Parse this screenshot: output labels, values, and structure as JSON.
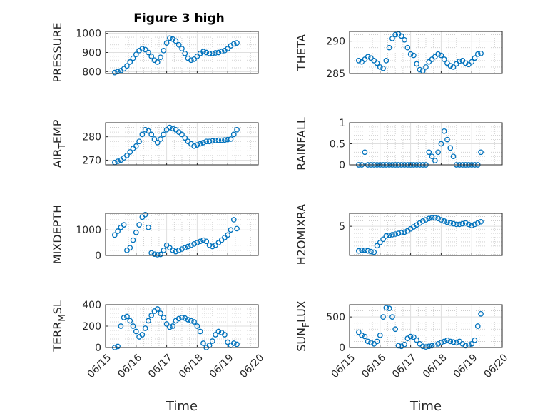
{
  "figure": {
    "title": "Figure 3 high"
  },
  "chart_data": [
    {
      "type": "scatter",
      "ylabel": "PRESSURE",
      "yticks": [
        "800",
        "900",
        "1000"
      ],
      "ylim": [
        790,
        1010
      ],
      "xticks": [],
      "xlabel": "",
      "x": [
        15.3,
        15.4,
        15.5,
        15.6,
        15.7,
        15.8,
        15.9,
        16.0,
        16.1,
        16.2,
        16.3,
        16.4,
        16.5,
        16.6,
        16.7,
        16.8,
        16.9,
        17.0,
        17.1,
        17.2,
        17.3,
        17.4,
        17.5,
        17.6,
        17.7,
        17.8,
        17.9,
        18.0,
        18.1,
        18.2,
        18.3,
        18.4,
        18.5,
        18.6,
        18.7,
        18.8,
        18.9,
        19.0,
        19.1,
        19.2,
        19.3
      ],
      "y": [
        795,
        800,
        805,
        815,
        830,
        850,
        870,
        890,
        910,
        920,
        915,
        900,
        880,
        860,
        850,
        875,
        910,
        950,
        975,
        970,
        960,
        940,
        920,
        895,
        870,
        860,
        865,
        880,
        895,
        905,
        900,
        895,
        895,
        898,
        900,
        905,
        910,
        920,
        935,
        945,
        950
      ]
    },
    {
      "type": "scatter",
      "ylabel": "THETA",
      "yticks": [
        "285",
        "290"
      ],
      "ylim": [
        285,
        291.5
      ],
      "xticks": [],
      "xlabel": "",
      "x": [
        15.3,
        15.4,
        15.5,
        15.6,
        15.7,
        15.8,
        15.9,
        16.0,
        16.1,
        16.2,
        16.3,
        16.4,
        16.5,
        16.6,
        16.7,
        16.8,
        16.9,
        17.0,
        17.1,
        17.2,
        17.3,
        17.4,
        17.5,
        17.6,
        17.7,
        17.8,
        17.9,
        18.0,
        18.1,
        18.2,
        18.3,
        18.4,
        18.5,
        18.6,
        18.7,
        18.8,
        18.9,
        19.0,
        19.1,
        19.2,
        19.3
      ],
      "y": [
        287,
        286.8,
        287.2,
        287.6,
        287.4,
        287,
        286.6,
        286,
        285.8,
        287,
        289,
        290.4,
        291,
        291.1,
        290.8,
        290.2,
        289,
        288,
        287.8,
        286.5,
        285.6,
        285.4,
        286,
        286.8,
        287.2,
        287.6,
        288,
        287.8,
        287.2,
        286.6,
        286.2,
        286,
        286.5,
        286.9,
        287,
        286.6,
        286.4,
        286.8,
        287.4,
        288,
        288.1
      ]
    },
    {
      "type": "scatter",
      "ylabel": "AIR",
      "ylabel_sub": "T",
      "ylabel_rest": "EMP",
      "yticks": [
        "270",
        "280"
      ],
      "ylim": [
        268,
        286
      ],
      "xticks": [],
      "xlabel": "",
      "x": [
        15.3,
        15.4,
        15.5,
        15.6,
        15.7,
        15.8,
        15.9,
        16.0,
        16.1,
        16.2,
        16.3,
        16.4,
        16.5,
        16.6,
        16.7,
        16.8,
        16.9,
        17.0,
        17.1,
        17.2,
        17.3,
        17.4,
        17.5,
        17.6,
        17.7,
        17.8,
        17.9,
        18.0,
        18.1,
        18.2,
        18.3,
        18.4,
        18.5,
        18.6,
        18.7,
        18.8,
        18.9,
        19.0,
        19.1,
        19.2,
        19.3
      ],
      "y": [
        269,
        269.5,
        270,
        271,
        272,
        273.5,
        275,
        276,
        278,
        281,
        283,
        282.5,
        281,
        279,
        277.5,
        279,
        281,
        283,
        284,
        283.5,
        283,
        282,
        281,
        279.5,
        278,
        277,
        276,
        276.5,
        277,
        277.5,
        278,
        278,
        278.2,
        278.4,
        278.5,
        278.5,
        278.6,
        278.8,
        279,
        281,
        283
      ]
    },
    {
      "type": "scatter",
      "ylabel": "RAINFALL",
      "yticks": [
        "0",
        "0.5",
        "1"
      ],
      "ylim": [
        0,
        1
      ],
      "xticks": [],
      "xlabel": "",
      "x": [
        15.3,
        15.4,
        15.5,
        15.6,
        15.7,
        15.8,
        15.9,
        16.0,
        16.1,
        16.2,
        16.3,
        16.4,
        16.5,
        16.6,
        16.7,
        16.8,
        16.9,
        17.0,
        17.1,
        17.2,
        17.3,
        17.4,
        17.5,
        17.6,
        17.7,
        17.8,
        17.9,
        18.0,
        18.1,
        18.2,
        18.3,
        18.4,
        18.5,
        18.6,
        18.7,
        18.8,
        18.9,
        19.0,
        19.1,
        19.2,
        19.3
      ],
      "y": [
        0,
        0,
        0.3,
        0,
        0,
        0,
        0,
        0,
        0,
        0,
        0,
        0,
        0,
        0,
        0,
        0,
        0,
        0,
        0,
        0,
        0,
        0,
        0,
        0.3,
        0.2,
        0.1,
        0.3,
        0.5,
        0.8,
        0.6,
        0.4,
        0.2,
        0,
        0,
        0,
        0,
        0,
        0,
        0,
        0,
        0.3
      ]
    },
    {
      "type": "scatter",
      "ylabel": "MIXDEPTH",
      "yticks": [
        "0",
        "1000"
      ],
      "ylim": [
        0,
        1650
      ],
      "xticks": [],
      "xlabel": "",
      "x": [
        15.3,
        15.4,
        15.5,
        15.6,
        15.7,
        15.8,
        15.9,
        16.0,
        16.1,
        16.2,
        16.3,
        16.4,
        16.5,
        16.6,
        16.7,
        16.8,
        16.9,
        17.0,
        17.1,
        17.2,
        17.3,
        17.4,
        17.5,
        17.6,
        17.7,
        17.8,
        17.9,
        18.0,
        18.1,
        18.2,
        18.3,
        18.4,
        18.5,
        18.6,
        18.7,
        18.8,
        18.9,
        19.0,
        19.1,
        19.2,
        19.3
      ],
      "y": [
        800,
        950,
        1100,
        1200,
        200,
        300,
        600,
        900,
        1200,
        1500,
        1600,
        1100,
        100,
        50,
        30,
        40,
        200,
        400,
        300,
        200,
        150,
        200,
        250,
        300,
        350,
        400,
        450,
        500,
        550,
        600,
        550,
        400,
        350,
        400,
        500,
        600,
        700,
        800,
        1000,
        1400,
        1050
      ]
    },
    {
      "type": "scatter",
      "ylabel": "H2OMIXRA",
      "yticks": [
        "5"
      ],
      "ylim": [
        0.5,
        7
      ],
      "xticks": [],
      "xlabel": "",
      "x": [
        15.3,
        15.4,
        15.5,
        15.6,
        15.7,
        15.8,
        15.9,
        16.0,
        16.1,
        16.2,
        16.3,
        16.4,
        16.5,
        16.6,
        16.7,
        16.8,
        16.9,
        17.0,
        17.1,
        17.2,
        17.3,
        17.4,
        17.5,
        17.6,
        17.7,
        17.8,
        17.9,
        18.0,
        18.1,
        18.2,
        18.3,
        18.4,
        18.5,
        18.6,
        18.7,
        18.8,
        18.9,
        19.0,
        19.1,
        19.2,
        19.3
      ],
      "y": [
        1.2,
        1.3,
        1.3,
        1.2,
        1.1,
        1.0,
        2.0,
        2.5,
        3.0,
        3.5,
        3.6,
        3.7,
        3.8,
        3.9,
        4.0,
        4.1,
        4.3,
        4.6,
        4.9,
        5.2,
        5.5,
        5.8,
        6.0,
        6.2,
        6.3,
        6.3,
        6.2,
        6.0,
        5.8,
        5.6,
        5.5,
        5.4,
        5.3,
        5.3,
        5.4,
        5.5,
        5.3,
        5.1,
        5.3,
        5.5,
        5.7
      ]
    },
    {
      "type": "scatter",
      "ylabel": "TERR",
      "ylabel_sub": "M",
      "ylabel_rest": "SL",
      "yticks": [
        "0",
        "200",
        "400"
      ],
      "ylim": [
        0,
        400
      ],
      "xticks": [
        "06/15",
        "06/16",
        "06/17",
        "06/18",
        "06/19",
        "06/20"
      ],
      "xlabel": "Time",
      "x": [
        15.3,
        15.4,
        15.5,
        15.6,
        15.7,
        15.8,
        15.9,
        16.0,
        16.1,
        16.2,
        16.3,
        16.4,
        16.5,
        16.6,
        16.7,
        16.8,
        16.9,
        17.0,
        17.1,
        17.2,
        17.3,
        17.4,
        17.5,
        17.6,
        17.7,
        17.8,
        17.9,
        18.0,
        18.1,
        18.2,
        18.3,
        18.4,
        18.5,
        18.6,
        18.7,
        18.8,
        18.9,
        19.0,
        19.1,
        19.2,
        19.3
      ],
      "y": [
        0,
        10,
        200,
        280,
        290,
        250,
        200,
        150,
        100,
        120,
        180,
        250,
        300,
        340,
        360,
        320,
        280,
        220,
        190,
        200,
        250,
        270,
        280,
        275,
        260,
        250,
        240,
        200,
        150,
        40,
        0,
        20,
        60,
        120,
        150,
        140,
        120,
        50,
        20,
        40,
        30
      ]
    },
    {
      "type": "scatter",
      "ylabel": "SUN",
      "ylabel_sub": "F",
      "ylabel_rest": "LUX",
      "yticks": [
        "0",
        "500"
      ],
      "ylim": [
        0,
        700
      ],
      "xticks": [
        "06/15",
        "06/16",
        "06/17",
        "06/18",
        "06/19",
        "06/20"
      ],
      "xlabel": "Time",
      "x": [
        15.3,
        15.4,
        15.5,
        15.6,
        15.7,
        15.8,
        15.9,
        16.0,
        16.1,
        16.2,
        16.3,
        16.4,
        16.5,
        16.6,
        16.7,
        16.8,
        16.9,
        17.0,
        17.1,
        17.2,
        17.3,
        17.4,
        17.5,
        17.6,
        17.7,
        17.8,
        17.9,
        18.0,
        18.1,
        18.2,
        18.3,
        18.4,
        18.5,
        18.6,
        18.7,
        18.8,
        18.9,
        19.0,
        19.1,
        19.2,
        19.3
      ],
      "y": [
        250,
        200,
        180,
        100,
        80,
        60,
        100,
        200,
        500,
        650,
        640,
        500,
        300,
        30,
        20,
        50,
        150,
        180,
        170,
        120,
        60,
        20,
        10,
        20,
        30,
        40,
        60,
        80,
        100,
        120,
        100,
        90,
        80,
        100,
        60,
        30,
        40,
        60,
        120,
        350,
        550
      ]
    }
  ]
}
